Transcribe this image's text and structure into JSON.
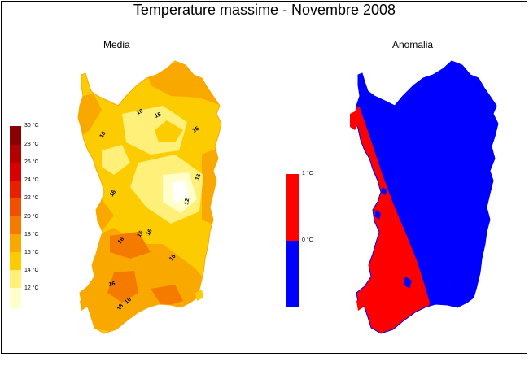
{
  "title": "Temperature massime - Novembre 2008",
  "panels": {
    "mean_label": "Media",
    "anomaly_label": "Anomalia"
  },
  "mean_legend": {
    "labels": [
      "30 °C",
      "28 °C",
      "26 °C",
      "24 °C",
      "22 °C",
      "20 °C",
      "18 °C",
      "16 °C",
      "14 °C",
      "12 °C"
    ],
    "colors": [
      "#8b0000",
      "#b30000",
      "#d80000",
      "#e82000",
      "#f05000",
      "#f57a00",
      "#f9a800",
      "#fccc00",
      "#fff07a",
      "#ffffcc"
    ]
  },
  "anomaly_legend": {
    "labels": [
      "1 °C",
      "0 °C"
    ],
    "colors": [
      "#ff0000",
      "#0000ff"
    ]
  },
  "contour_labels": [
    "16",
    "15",
    "16",
    "16",
    "16",
    "16",
    "12",
    "16",
    "16",
    "16",
    "16",
    "16",
    "18",
    "16"
  ]
}
